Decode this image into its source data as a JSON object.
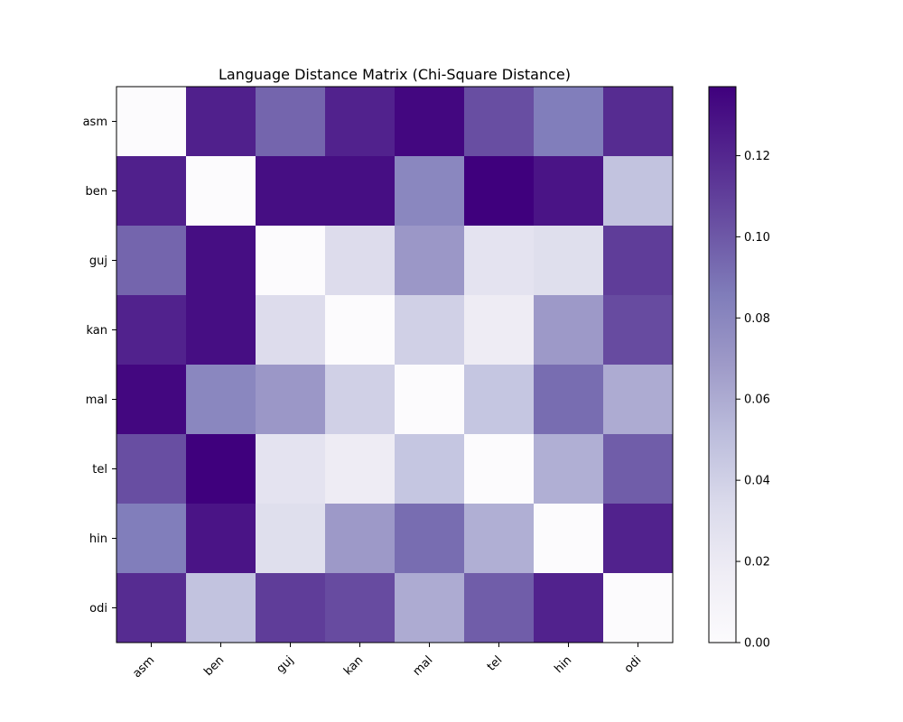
{
  "chart_data": {
    "type": "heatmap",
    "title": "Language Distance Matrix (Chi-Square Distance)",
    "xlabel": "",
    "ylabel": "",
    "x_categories": [
      "asm",
      "ben",
      "guj",
      "kan",
      "mal",
      "tel",
      "hin",
      "odi"
    ],
    "y_categories": [
      "asm",
      "ben",
      "guj",
      "kan",
      "mal",
      "tel",
      "hin",
      "odi"
    ],
    "values": [
      [
        0.0,
        0.123,
        0.095,
        0.122,
        0.134,
        0.104,
        0.085,
        0.118
      ],
      [
        0.123,
        0.0,
        0.131,
        0.131,
        0.08,
        0.137,
        0.128,
        0.048
      ],
      [
        0.095,
        0.131,
        0.0,
        0.032,
        0.07,
        0.026,
        0.03,
        0.111
      ],
      [
        0.122,
        0.131,
        0.032,
        0.0,
        0.04,
        0.018,
        0.069,
        0.105
      ],
      [
        0.134,
        0.08,
        0.07,
        0.04,
        0.0,
        0.046,
        0.092,
        0.06
      ],
      [
        0.104,
        0.137,
        0.026,
        0.018,
        0.046,
        0.0,
        0.058,
        0.098
      ],
      [
        0.085,
        0.128,
        0.03,
        0.069,
        0.092,
        0.058,
        0.0,
        0.122
      ],
      [
        0.118,
        0.048,
        0.111,
        0.105,
        0.06,
        0.098,
        0.122,
        0.0
      ]
    ],
    "colormap": "Purples",
    "colorbar": {
      "min": 0.0,
      "max": 0.137,
      "ticks": [
        0.0,
        0.02,
        0.04,
        0.06,
        0.08,
        0.1,
        0.12
      ],
      "tick_labels": [
        "0.00",
        "0.02",
        "0.04",
        "0.06",
        "0.08",
        "0.10",
        "0.12"
      ]
    },
    "grid": false,
    "legend": "colorbar-right"
  }
}
